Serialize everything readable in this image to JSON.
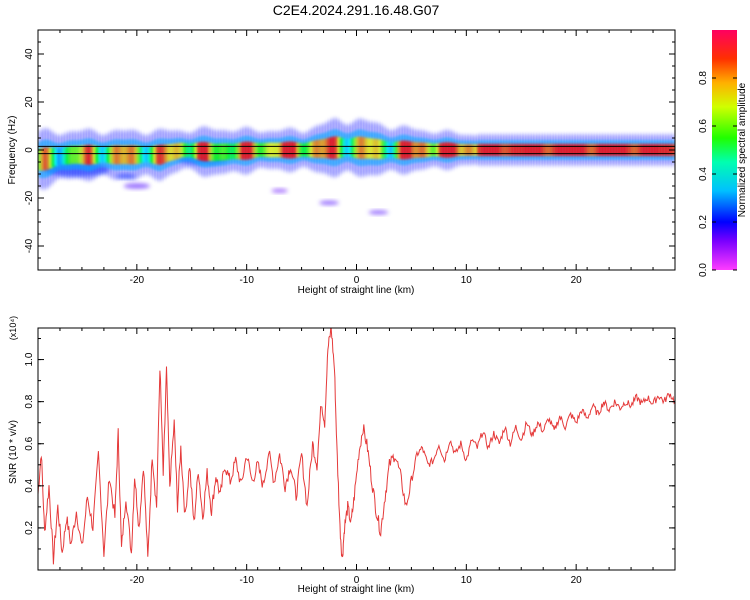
{
  "title": "C2E4.2024.291.16.48.G07",
  "colorbar": {
    "label": "Normalized spectral amplitude",
    "range": [
      0,
      1
    ],
    "ticks": [
      "0.0",
      "0.2",
      "0.4",
      "0.6",
      "0.8"
    ],
    "tick_values": [
      0,
      0.2,
      0.4,
      0.6,
      0.8
    ]
  },
  "chart_data": [
    {
      "type": "heatmap",
      "xlabel": "Height of straight line (km)",
      "ylabel": "Frequency (Hz)",
      "xlim": [
        -29,
        29
      ],
      "ylim": [
        -50,
        50
      ],
      "xticks": [
        -20,
        -10,
        0,
        10,
        20
      ],
      "yticks": [
        -40,
        -20,
        0,
        20,
        40
      ],
      "colormap": "rainbow",
      "band_hz": [
        -1.5,
        1.5
      ],
      "ridge": [
        {
          "x": -29,
          "y": -4,
          "w": 3.5,
          "a": 0.55
        },
        {
          "x": -26,
          "y": -2,
          "w": 3.0,
          "a": 0.65
        },
        {
          "x": -22,
          "y": -2,
          "w": 3.0,
          "a": 0.75
        },
        {
          "x": -18,
          "y": -2,
          "w": 3.0,
          "a": 0.7
        },
        {
          "x": -16,
          "y": 0,
          "w": 2.5,
          "a": 0.85
        },
        {
          "x": -13,
          "y": -1,
          "w": 3.0,
          "a": 0.7
        },
        {
          "x": -9,
          "y": 0,
          "w": 2.5,
          "a": 0.85
        },
        {
          "x": -5,
          "y": 0,
          "w": 2.5,
          "a": 0.9
        },
        {
          "x": -2,
          "y": 1,
          "w": 3.5,
          "a": 0.75
        },
        {
          "x": 0,
          "y": 1,
          "w": 3.5,
          "a": 0.7
        },
        {
          "x": 3,
          "y": 0,
          "w": 3.0,
          "a": 0.7
        },
        {
          "x": 6,
          "y": 0,
          "w": 2.5,
          "a": 0.95
        },
        {
          "x": 10,
          "y": 0,
          "w": 2.0,
          "a": 1.0
        },
        {
          "x": 29,
          "y": 0,
          "w": 2.0,
          "a": 1.0
        }
      ],
      "blobs": [
        {
          "x": -25.5,
          "y": -8,
          "r": 2.0,
          "a": 0.2
        },
        {
          "x": -21,
          "y": -11,
          "r": 0.6,
          "a": 0.2
        },
        {
          "x": -14,
          "y": -4,
          "r": 1.5,
          "a": 0.25
        },
        {
          "x": -20,
          "y": -15,
          "r": 0.8,
          "a": 0.1
        },
        {
          "x": -2.5,
          "y": -22,
          "r": 0.6,
          "a": 0.1
        },
        {
          "x": 2,
          "y": -26,
          "r": 0.6,
          "a": 0.1
        },
        {
          "x": -7,
          "y": -17,
          "r": 0.5,
          "a": 0.08
        }
      ]
    },
    {
      "type": "line",
      "xlabel": "Height of straight line (km)",
      "ylabel": "SNR (10 * v/v)",
      "y_multiplier": "(x10⁴)",
      "xlim": [
        -29,
        29
      ],
      "ylim": [
        0,
        1.15
      ],
      "xticks": [
        -20,
        -10,
        0,
        10,
        20
      ],
      "yticks": [
        0.2,
        0.4,
        0.6,
        0.8,
        1.0
      ],
      "ytick_labels": [
        "0.2",
        "0.4",
        "0.6",
        "0.8",
        "1.0"
      ],
      "color": "#e53a3a",
      "points": [
        [
          -29,
          0.36
        ],
        [
          -28.7,
          0.56
        ],
        [
          -28.4,
          0.18
        ],
        [
          -28,
          0.4
        ],
        [
          -27.6,
          0.05
        ],
        [
          -27.2,
          0.3
        ],
        [
          -26.8,
          0.08
        ],
        [
          -26.4,
          0.25
        ],
        [
          -26,
          0.12
        ],
        [
          -25.5,
          0.28
        ],
        [
          -25,
          0.1
        ],
        [
          -24.5,
          0.35
        ],
        [
          -24,
          0.2
        ],
        [
          -23.5,
          0.55
        ],
        [
          -23,
          0.08
        ],
        [
          -22.5,
          0.45
        ],
        [
          -22,
          0.25
        ],
        [
          -21.7,
          0.65
        ],
        [
          -21.4,
          0.1
        ],
        [
          -21,
          0.35
        ],
        [
          -20.5,
          0.08
        ],
        [
          -20.2,
          0.45
        ],
        [
          -19.8,
          0.2
        ],
        [
          -19.4,
          0.5
        ],
        [
          -19,
          0.05
        ],
        [
          -18.6,
          0.55
        ],
        [
          -18.2,
          0.3
        ],
        [
          -17.9,
          0.97
        ],
        [
          -17.6,
          0.45
        ],
        [
          -17.3,
          0.95
        ],
        [
          -17,
          0.4
        ],
        [
          -16.6,
          0.7
        ],
        [
          -16.3,
          0.3
        ],
        [
          -16,
          0.58
        ],
        [
          -15.6,
          0.25
        ],
        [
          -15.2,
          0.5
        ],
        [
          -14.8,
          0.22
        ],
        [
          -14.4,
          0.48
        ],
        [
          -14,
          0.25
        ],
        [
          -13.6,
          0.46
        ],
        [
          -13.2,
          0.28
        ],
        [
          -12.8,
          0.45
        ],
        [
          -12.4,
          0.35
        ],
        [
          -12,
          0.5
        ],
        [
          -11.5,
          0.42
        ],
        [
          -11,
          0.52
        ],
        [
          -10.5,
          0.4
        ],
        [
          -10,
          0.55
        ],
        [
          -9.5,
          0.42
        ],
        [
          -9,
          0.5
        ],
        [
          -8.5,
          0.4
        ],
        [
          -8,
          0.56
        ],
        [
          -7.5,
          0.42
        ],
        [
          -7,
          0.55
        ],
        [
          -6.5,
          0.4
        ],
        [
          -6,
          0.5
        ],
        [
          -5.5,
          0.35
        ],
        [
          -5,
          0.55
        ],
        [
          -4.5,
          0.3
        ],
        [
          -4,
          0.6
        ],
        [
          -3.6,
          0.5
        ],
        [
          -3.2,
          0.8
        ],
        [
          -2.9,
          0.7
        ],
        [
          -2.6,
          1.05
        ],
        [
          -2.3,
          1.15
        ],
        [
          -2,
          0.95
        ],
        [
          -1.8,
          0.6
        ],
        [
          -1.5,
          0.2
        ],
        [
          -1.3,
          0.05
        ],
        [
          -1.1,
          0.2
        ],
        [
          -0.8,
          0.3
        ],
        [
          -0.5,
          0.22
        ],
        [
          -0.2,
          0.35
        ],
        [
          0.2,
          0.55
        ],
        [
          0.6,
          0.68
        ],
        [
          1,
          0.58
        ],
        [
          1.4,
          0.42
        ],
        [
          1.8,
          0.28
        ],
        [
          2.2,
          0.18
        ],
        [
          2.6,
          0.35
        ],
        [
          3,
          0.5
        ],
        [
          3.5,
          0.55
        ],
        [
          4,
          0.45
        ],
        [
          4.5,
          0.3
        ],
        [
          5,
          0.42
        ],
        [
          5.5,
          0.55
        ],
        [
          6,
          0.58
        ],
        [
          6.5,
          0.5
        ],
        [
          7,
          0.52
        ],
        [
          7.5,
          0.6
        ],
        [
          8,
          0.52
        ],
        [
          8.5,
          0.62
        ],
        [
          9,
          0.55
        ],
        [
          9.5,
          0.6
        ],
        [
          10,
          0.52
        ],
        [
          10.5,
          0.62
        ],
        [
          11,
          0.58
        ],
        [
          11.5,
          0.66
        ],
        [
          12,
          0.58
        ],
        [
          12.5,
          0.65
        ],
        [
          13,
          0.6
        ],
        [
          13.5,
          0.68
        ],
        [
          14,
          0.6
        ],
        [
          14.5,
          0.68
        ],
        [
          15,
          0.62
        ],
        [
          15.5,
          0.7
        ],
        [
          16,
          0.64
        ],
        [
          16.5,
          0.7
        ],
        [
          17,
          0.66
        ],
        [
          17.5,
          0.72
        ],
        [
          18,
          0.66
        ],
        [
          18.5,
          0.73
        ],
        [
          19,
          0.68
        ],
        [
          19.5,
          0.74
        ],
        [
          20,
          0.7
        ],
        [
          20.5,
          0.76
        ],
        [
          21,
          0.72
        ],
        [
          21.5,
          0.78
        ],
        [
          22,
          0.74
        ],
        [
          22.5,
          0.8
        ],
        [
          23,
          0.76
        ],
        [
          23.5,
          0.8
        ],
        [
          24,
          0.77
        ],
        [
          24.5,
          0.8
        ],
        [
          25,
          0.78
        ],
        [
          25.5,
          0.82
        ],
        [
          26,
          0.79
        ],
        [
          26.5,
          0.82
        ],
        [
          27,
          0.79
        ],
        [
          27.5,
          0.83
        ],
        [
          28,
          0.8
        ],
        [
          28.5,
          0.84
        ],
        [
          29,
          0.8
        ]
      ]
    }
  ]
}
